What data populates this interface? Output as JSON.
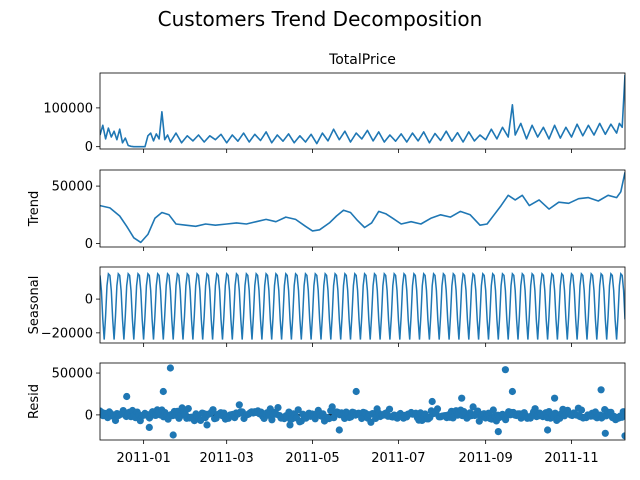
{
  "chart_data": {
    "type": "line",
    "title": "Customers Trend Decomposition",
    "x_range": [
      "2010-12-01",
      "2011-12-09"
    ],
    "xticks": [
      "2011-01",
      "2011-03",
      "2011-05",
      "2011-07",
      "2011-09",
      "2011-11"
    ],
    "color": "#1f77b4",
    "panels": [
      {
        "name": "observed",
        "title": "TotalPrice",
        "ylabel": "",
        "kind": "line",
        "ylim": [
          -6000,
          190000
        ],
        "yticks": [
          0,
          100000
        ],
        "ytick_labels": [
          "0",
          "100000"
        ],
        "points": [
          [
            "2010-12-01",
            30000
          ],
          [
            "2010-12-03",
            55000
          ],
          [
            "2010-12-05",
            20000
          ],
          [
            "2010-12-07",
            48000
          ],
          [
            "2010-12-09",
            25000
          ],
          [
            "2010-12-11",
            40000
          ],
          [
            "2010-12-13",
            18000
          ],
          [
            "2010-12-15",
            45000
          ],
          [
            "2010-12-17",
            10000
          ],
          [
            "2010-12-19",
            22000
          ],
          [
            "2010-12-21",
            3000
          ],
          [
            "2010-12-23",
            1000
          ],
          [
            "2010-12-25",
            0
          ],
          [
            "2010-12-29",
            0
          ],
          [
            "2011-01-02",
            0
          ],
          [
            "2011-01-04",
            28000
          ],
          [
            "2011-01-06",
            35000
          ],
          [
            "2011-01-08",
            15000
          ],
          [
            "2011-01-10",
            33000
          ],
          [
            "2011-01-12",
            20000
          ],
          [
            "2011-01-14",
            90000
          ],
          [
            "2011-01-16",
            18000
          ],
          [
            "2011-01-18",
            30000
          ],
          [
            "2011-01-20",
            12000
          ],
          [
            "2011-01-24",
            35000
          ],
          [
            "2011-01-28",
            10000
          ],
          [
            "2011-02-01",
            28000
          ],
          [
            "2011-02-05",
            15000
          ],
          [
            "2011-02-09",
            30000
          ],
          [
            "2011-02-13",
            12000
          ],
          [
            "2011-02-17",
            28000
          ],
          [
            "2011-02-21",
            18000
          ],
          [
            "2011-02-25",
            32000
          ],
          [
            "2011-03-01",
            10000
          ],
          [
            "2011-03-05",
            30000
          ],
          [
            "2011-03-09",
            14000
          ],
          [
            "2011-03-13",
            35000
          ],
          [
            "2011-03-17",
            12000
          ],
          [
            "2011-03-21",
            32000
          ],
          [
            "2011-03-25",
            16000
          ],
          [
            "2011-03-29",
            38000
          ],
          [
            "2011-04-02",
            10000
          ],
          [
            "2011-04-06",
            30000
          ],
          [
            "2011-04-10",
            14000
          ],
          [
            "2011-04-14",
            33000
          ],
          [
            "2011-04-18",
            10000
          ],
          [
            "2011-04-22",
            28000
          ],
          [
            "2011-04-26",
            12000
          ],
          [
            "2011-04-30",
            32000
          ],
          [
            "2011-05-04",
            8000
          ],
          [
            "2011-05-08",
            35000
          ],
          [
            "2011-05-12",
            15000
          ],
          [
            "2011-05-16",
            45000
          ],
          [
            "2011-05-20",
            18000
          ],
          [
            "2011-05-24",
            40000
          ],
          [
            "2011-05-28",
            12000
          ],
          [
            "2011-06-01",
            35000
          ],
          [
            "2011-06-05",
            20000
          ],
          [
            "2011-06-09",
            42000
          ],
          [
            "2011-06-13",
            15000
          ],
          [
            "2011-06-17",
            38000
          ],
          [
            "2011-06-21",
            12000
          ],
          [
            "2011-06-25",
            30000
          ],
          [
            "2011-06-29",
            14000
          ],
          [
            "2011-07-03",
            33000
          ],
          [
            "2011-07-07",
            12000
          ],
          [
            "2011-07-11",
            35000
          ],
          [
            "2011-07-15",
            15000
          ],
          [
            "2011-07-19",
            38000
          ],
          [
            "2011-07-23",
            10000
          ],
          [
            "2011-07-27",
            34000
          ],
          [
            "2011-07-31",
            16000
          ],
          [
            "2011-08-04",
            40000
          ],
          [
            "2011-08-08",
            14000
          ],
          [
            "2011-08-12",
            36000
          ],
          [
            "2011-08-16",
            12000
          ],
          [
            "2011-08-20",
            38000
          ],
          [
            "2011-08-24",
            15000
          ],
          [
            "2011-08-28",
            30000
          ],
          [
            "2011-09-01",
            18000
          ],
          [
            "2011-09-05",
            45000
          ],
          [
            "2011-09-09",
            20000
          ],
          [
            "2011-09-13",
            50000
          ],
          [
            "2011-09-17",
            25000
          ],
          [
            "2011-09-20",
            108000
          ],
          [
            "2011-09-22",
            30000
          ],
          [
            "2011-09-26",
            60000
          ],
          [
            "2011-09-30",
            20000
          ],
          [
            "2011-10-04",
            55000
          ],
          [
            "2011-10-08",
            25000
          ],
          [
            "2011-10-12",
            50000
          ],
          [
            "2011-10-16",
            20000
          ],
          [
            "2011-10-20",
            55000
          ],
          [
            "2011-10-24",
            22000
          ],
          [
            "2011-10-28",
            50000
          ],
          [
            "2011-11-01",
            25000
          ],
          [
            "2011-11-05",
            58000
          ],
          [
            "2011-11-09",
            28000
          ],
          [
            "2011-11-13",
            55000
          ],
          [
            "2011-11-17",
            30000
          ],
          [
            "2011-11-21",
            60000
          ],
          [
            "2011-11-25",
            32000
          ],
          [
            "2011-11-29",
            58000
          ],
          [
            "2011-12-03",
            35000
          ],
          [
            "2011-12-05",
            60000
          ],
          [
            "2011-12-07",
            50000
          ],
          [
            "2011-12-09",
            185000
          ]
        ]
      },
      {
        "name": "trend",
        "title": "",
        "ylabel": "Trend",
        "kind": "line",
        "ylim": [
          -3000,
          64000
        ],
        "yticks": [
          0,
          50000
        ],
        "ytick_labels": [
          "0",
          "50000"
        ],
        "points": [
          [
            "2010-12-01",
            33000
          ],
          [
            "2010-12-08",
            31000
          ],
          [
            "2010-12-15",
            24000
          ],
          [
            "2010-12-20",
            15000
          ],
          [
            "2010-12-25",
            5000
          ],
          [
            "2010-12-30",
            1000
          ],
          [
            "2011-01-04",
            8000
          ],
          [
            "2011-01-09",
            22000
          ],
          [
            "2011-01-14",
            27000
          ],
          [
            "2011-01-19",
            25000
          ],
          [
            "2011-01-24",
            17000
          ],
          [
            "2011-01-31",
            16000
          ],
          [
            "2011-02-07",
            15000
          ],
          [
            "2011-02-14",
            17000
          ],
          [
            "2011-02-21",
            16000
          ],
          [
            "2011-03-01",
            17000
          ],
          [
            "2011-03-08",
            18000
          ],
          [
            "2011-03-15",
            17000
          ],
          [
            "2011-03-22",
            19000
          ],
          [
            "2011-03-29",
            21000
          ],
          [
            "2011-04-05",
            19000
          ],
          [
            "2011-04-12",
            23000
          ],
          [
            "2011-04-19",
            21000
          ],
          [
            "2011-04-26",
            15000
          ],
          [
            "2011-05-01",
            11000
          ],
          [
            "2011-05-06",
            12000
          ],
          [
            "2011-05-13",
            18000
          ],
          [
            "2011-05-18",
            24000
          ],
          [
            "2011-05-23",
            29000
          ],
          [
            "2011-05-28",
            27000
          ],
          [
            "2011-06-02",
            20000
          ],
          [
            "2011-06-07",
            14000
          ],
          [
            "2011-06-12",
            18000
          ],
          [
            "2011-06-17",
            28000
          ],
          [
            "2011-06-22",
            26000
          ],
          [
            "2011-06-27",
            22000
          ],
          [
            "2011-07-03",
            17000
          ],
          [
            "2011-07-10",
            19000
          ],
          [
            "2011-07-17",
            17000
          ],
          [
            "2011-07-24",
            22000
          ],
          [
            "2011-07-31",
            25000
          ],
          [
            "2011-08-07",
            23000
          ],
          [
            "2011-08-14",
            28000
          ],
          [
            "2011-08-21",
            25000
          ],
          [
            "2011-08-28",
            16000
          ],
          [
            "2011-09-02",
            17000
          ],
          [
            "2011-09-07",
            25000
          ],
          [
            "2011-09-12",
            33000
          ],
          [
            "2011-09-17",
            42000
          ],
          [
            "2011-09-22",
            38000
          ],
          [
            "2011-09-27",
            42000
          ],
          [
            "2011-10-02",
            33000
          ],
          [
            "2011-10-09",
            38000
          ],
          [
            "2011-10-16",
            30000
          ],
          [
            "2011-10-23",
            36000
          ],
          [
            "2011-10-30",
            35000
          ],
          [
            "2011-11-06",
            39000
          ],
          [
            "2011-11-13",
            40000
          ],
          [
            "2011-11-20",
            37000
          ],
          [
            "2011-11-27",
            42000
          ],
          [
            "2011-12-03",
            40000
          ],
          [
            "2011-12-06",
            45000
          ],
          [
            "2011-12-09",
            62000
          ]
        ]
      },
      {
        "name": "seasonal",
        "title": "",
        "ylabel": "Seasonal",
        "kind": "periodic",
        "ylim": [
          -26000,
          19000
        ],
        "yticks": [
          0,
          -20000
        ],
        "ytick_labels": [
          "0",
          "−20000"
        ],
        "period_days": 7,
        "cycle_values": [
          14000,
          5000,
          -12000,
          -24000,
          -10000,
          8000,
          15000
        ]
      },
      {
        "name": "resid",
        "title": "",
        "ylabel": "Resid",
        "kind": "scatter",
        "ylim": [
          -30000,
          62000
        ],
        "yticks": [
          0,
          50000
        ],
        "ytick_labels": [
          "0",
          "50000"
        ],
        "zero_line": true,
        "points": [
          [
            "2011-01-20",
            56000
          ],
          [
            "2011-09-15",
            54000
          ],
          [
            "2011-01-15",
            28000
          ],
          [
            "2011-06-01",
            28000
          ],
          [
            "2011-09-20",
            28000
          ],
          [
            "2011-11-22",
            30000
          ],
          [
            "2011-12-09",
            -25000
          ],
          [
            "2011-01-22",
            -24000
          ],
          [
            "2011-11-25",
            -22000
          ],
          [
            "2010-12-20",
            22000
          ],
          [
            "2011-08-15",
            20000
          ],
          [
            "2011-09-10",
            -20000
          ],
          [
            "2011-10-15",
            -18000
          ],
          [
            "2011-05-20",
            -18000
          ],
          [
            "2011-01-05",
            -15000
          ],
          [
            "2011-07-25",
            16000
          ],
          [
            "2011-10-20",
            20000
          ],
          [
            "2011-03-10",
            12000
          ],
          [
            "2011-04-15",
            -12000
          ],
          [
            "2011-02-15",
            -12000
          ]
        ],
        "noise_sd": 7000
      }
    ]
  }
}
